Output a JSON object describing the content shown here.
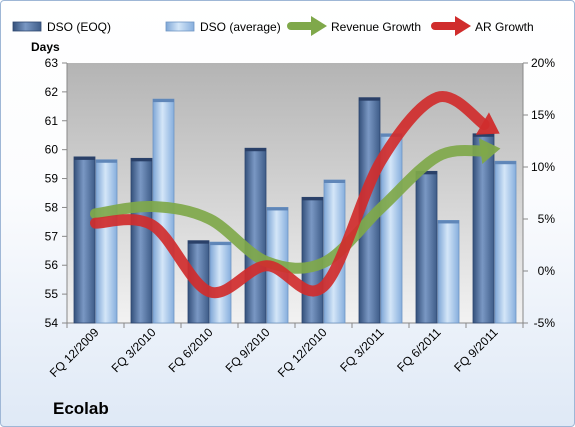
{
  "company": "Ecolab",
  "chart_data": {
    "type": "bar",
    "categories": [
      "FQ 12/2009",
      "FQ 3/2010",
      "FQ 6/2010",
      "FQ 9/2010",
      "FQ 12/2010",
      "FQ 3/2011",
      "FQ 6/2011",
      "FQ 9/2011"
    ],
    "ylabel": "Days",
    "ylim": [
      54,
      63
    ],
    "yticks": [
      54,
      55,
      56,
      57,
      58,
      59,
      60,
      61,
      62,
      63
    ],
    "y2lim": [
      -5,
      20
    ],
    "y2ticks": [
      "-5%",
      "0%",
      "5%",
      "10%",
      "15%",
      "20%"
    ],
    "y2tick_values": [
      -5,
      0,
      5,
      10,
      15,
      20
    ],
    "legend_position": "top",
    "grid": false,
    "series": [
      {
        "name": "DSO (EOQ)",
        "kind": "bar",
        "axis": "left",
        "color": "#4a6a98",
        "values": [
          59.75,
          59.7,
          56.85,
          60.05,
          58.35,
          61.8,
          59.25,
          60.55
        ]
      },
      {
        "name": "DSO (average)",
        "kind": "bar",
        "axis": "left",
        "color": "#9cc0e8",
        "values": [
          59.65,
          61.75,
          56.8,
          58.0,
          58.95,
          60.55,
          57.55,
          59.6
        ]
      },
      {
        "name": "Revenue Growth",
        "kind": "line-arrow",
        "axis": "right",
        "color": "#7fa84a",
        "values": [
          5.5,
          6.2,
          5.0,
          0.9,
          0.8,
          6.0,
          11.0,
          11.7
        ]
      },
      {
        "name": "AR Growth",
        "kind": "line-arrow",
        "axis": "right",
        "color": "#d02c2c",
        "values": [
          4.6,
          4.4,
          -2.0,
          0.5,
          -1.5,
          10.5,
          16.7,
          13.5
        ]
      }
    ]
  }
}
